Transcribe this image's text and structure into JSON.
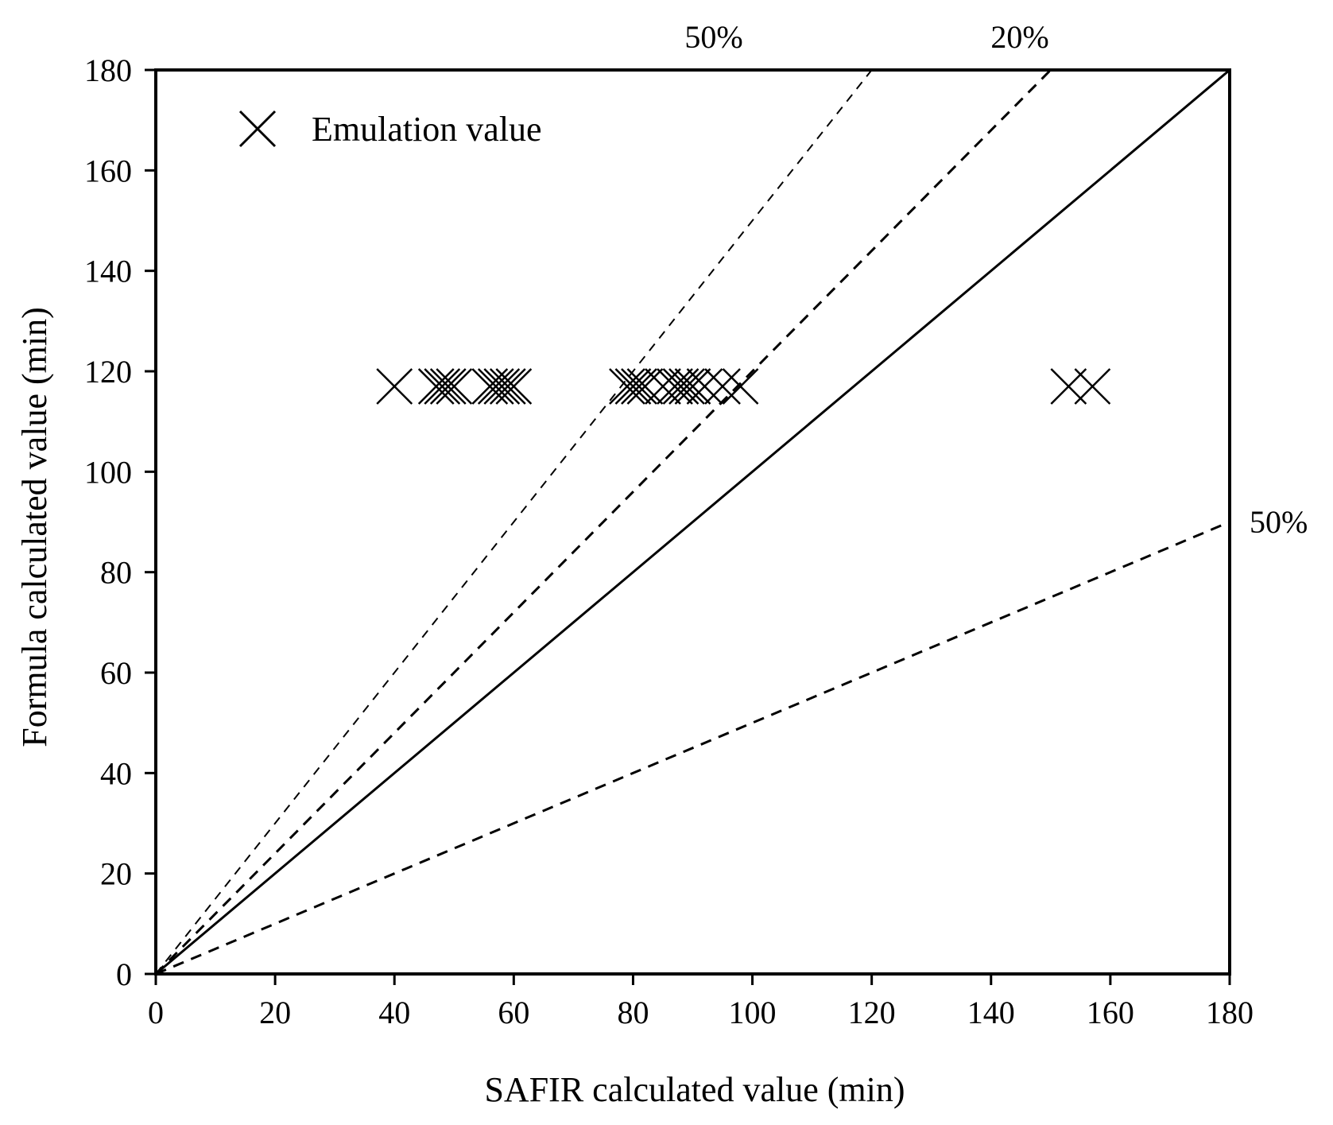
{
  "chart_data": {
    "type": "scatter",
    "title": "",
    "xlabel": "SAFIR calculated value (min)",
    "ylabel": "Formula calculated value (min)",
    "xlim": [
      0,
      180
    ],
    "ylim": [
      0,
      180
    ],
    "xticks": [
      0,
      20,
      40,
      60,
      80,
      100,
      120,
      140,
      160,
      180
    ],
    "yticks": [
      0,
      20,
      40,
      60,
      80,
      100,
      120,
      140,
      160,
      180
    ],
    "grid": false,
    "legend": {
      "placement": "top-left",
      "entries": [
        "Emulation value"
      ]
    },
    "series": [
      {
        "name": "Emulation value",
        "marker": "x",
        "points": [
          [
            40,
            117
          ],
          [
            47,
            117
          ],
          [
            48,
            117
          ],
          [
            49,
            117
          ],
          [
            50,
            117
          ],
          [
            56,
            117
          ],
          [
            57,
            117
          ],
          [
            58,
            117
          ],
          [
            59,
            117
          ],
          [
            60,
            117
          ],
          [
            79,
            117
          ],
          [
            80,
            117
          ],
          [
            81,
            117
          ],
          [
            82,
            117
          ],
          [
            85,
            117
          ],
          [
            87,
            117
          ],
          [
            88,
            117
          ],
          [
            89,
            117
          ],
          [
            90,
            117
          ],
          [
            92,
            117
          ],
          [
            95,
            117
          ],
          [
            98,
            117
          ],
          [
            153,
            117
          ],
          [
            157,
            117
          ]
        ]
      }
    ],
    "reference_lines": [
      {
        "name": "equality",
        "slope": 1.0,
        "style": "solid",
        "label": ""
      },
      {
        "name": "plus-50",
        "slope": 1.5,
        "style": "dashed-fine",
        "label": "50%"
      },
      {
        "name": "plus-20",
        "slope": 1.2,
        "style": "dashed",
        "label": "20%"
      },
      {
        "name": "minus-50",
        "slope": 0.5,
        "style": "dashed",
        "label": "50%"
      }
    ]
  }
}
